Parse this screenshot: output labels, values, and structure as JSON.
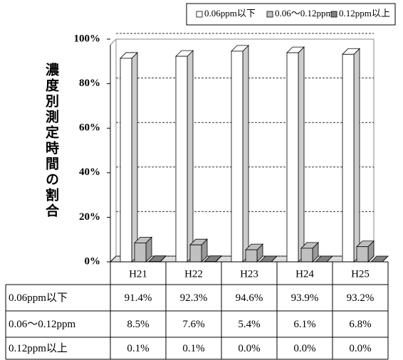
{
  "chart_data": {
    "type": "bar3d",
    "y_label": "濃度別測定時間の割合",
    "categories": [
      "H21",
      "H22",
      "H23",
      "H24",
      "H25"
    ],
    "series": [
      {
        "name": "0.06ppm以下",
        "color": "#ffffff",
        "values": [
          91.4,
          92.3,
          94.6,
          93.9,
          93.2
        ],
        "value_labels": [
          "91.4%",
          "92.3%",
          "94.6%",
          "93.9%",
          "93.2%"
        ]
      },
      {
        "name": "0.06～0.12ppm",
        "color": "#c0c0c0",
        "values": [
          8.5,
          7.6,
          5.4,
          6.1,
          6.8
        ],
        "value_labels": [
          "8.5%",
          "7.6%",
          "5.4%",
          "6.1%",
          "6.8%"
        ]
      },
      {
        "name": "0.12ppm以上",
        "color": "#808080",
        "values": [
          0.1,
          0.1,
          0.0,
          0.0,
          0.0
        ],
        "value_labels": [
          "0.1%",
          "0.1%",
          "0.0%",
          "0.0%",
          "0.0%"
        ]
      }
    ],
    "ylim": [
      0,
      100
    ],
    "yticks": [
      {
        "value": 0,
        "label": "0%"
      },
      {
        "value": 20,
        "label": "20%"
      },
      {
        "value": 40,
        "label": "40%"
      },
      {
        "value": 60,
        "label": "60%"
      },
      {
        "value": 80,
        "label": "80%"
      },
      {
        "value": 100,
        "label": "100%"
      }
    ],
    "grid": true,
    "legend": "top"
  }
}
